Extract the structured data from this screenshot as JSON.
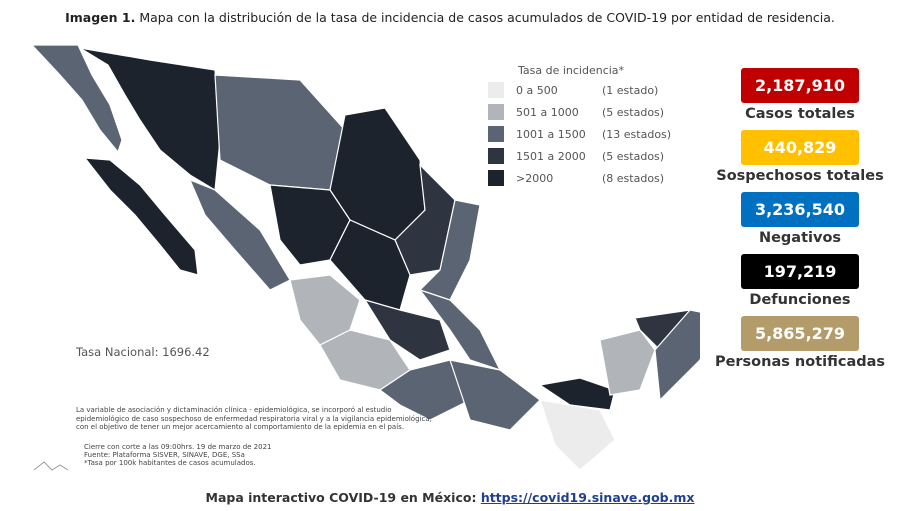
{
  "header": {
    "label": "Imagen 1.",
    "title": "Mapa con la distribución de la tasa de incidencia de casos acumulados de COVID-19 por entidad de residencia."
  },
  "legend": {
    "title": "Tasa de incidencia*",
    "items": [
      {
        "range": "0 a 500",
        "count": "(1 estado)",
        "color": "#ececec"
      },
      {
        "range": "501 a 1000",
        "count": "(5 estados)",
        "color": "#b1b4b9"
      },
      {
        "range": "1001 a 1500",
        "count": "(13 estados)",
        "color": "#5a6472"
      },
      {
        "range": "1501 a 2000",
        "count": "(5 estados)",
        "color": "#2e3540"
      },
      {
        "range": ">2000",
        "count": "(8 estados)",
        "color": "#1d232d"
      }
    ]
  },
  "national_rate": "Tasa Nacional: 1696.42",
  "notes": [
    "La variable de asociación y dictaminación clínica - epidemiológica, se incorporó al estudio",
    "epidemiológico de caso sospechoso de enfermedad respiratoria viral y a la vigilancia epidemiológica,",
    "con el objetivo de tener un mejor acercamiento al comportamiento de la epidemia en el país."
  ],
  "sources": [
    "Cierre con corte a las 09:00hrs. 19 de marzo de 2021",
    "Fuente: Plataforma SISVER, SINAVE, DGE, SSa",
    "*Tasa por 100k habitantes de casos acumulados."
  ],
  "stats": [
    {
      "value": "2,187,910",
      "label": "Casos totales",
      "color": "#c00000"
    },
    {
      "value": "440,829",
      "label": "Sospechosos totales",
      "color": "#ffc000"
    },
    {
      "value": "3,236,540",
      "label": "Negativos",
      "color": "#0070c0"
    },
    {
      "value": "197,219",
      "label": "Defunciones",
      "color": "#000000"
    },
    {
      "value": "5,865,279",
      "label": "Personas notificadas",
      "color": "#b49b6a"
    }
  ],
  "footer": {
    "text": "Mapa interactivo COVID-19 en México:",
    "link": "https://covid19.sinave.gob.mx"
  }
}
